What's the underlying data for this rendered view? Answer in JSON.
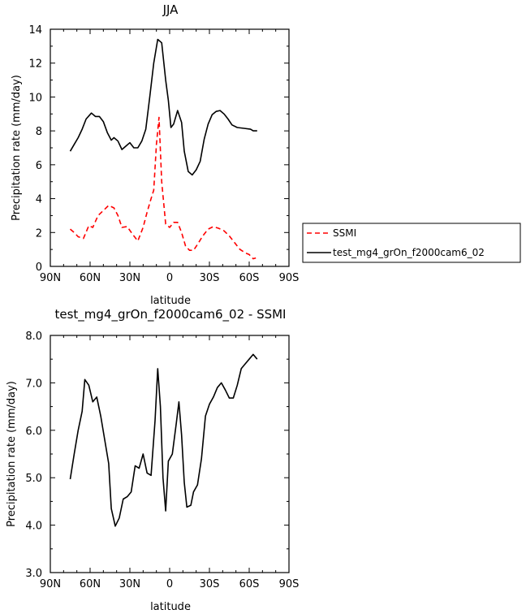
{
  "chart_data": [
    {
      "type": "line",
      "title": "JJA",
      "xlabel": "latitude",
      "ylabel": "Precipitation rate (mm/day)",
      "xlim": [
        -90,
        90
      ],
      "ylim": [
        0,
        14
      ],
      "x_ticks": [
        -90,
        -60,
        -30,
        0,
        30,
        60,
        90
      ],
      "x_tick_labels": [
        "90N",
        "60N",
        "30N",
        "0",
        "30S",
        "60S",
        "90S"
      ],
      "y_ticks": [
        0,
        2,
        4,
        6,
        8,
        10,
        12,
        14
      ],
      "y_tick_labels": [
        "0",
        "2",
        "4",
        "6",
        "8",
        "10",
        "12",
        "14"
      ],
      "grid": false,
      "legend_position": "right",
      "series": [
        {
          "name": "SSMI",
          "color": "#ff0000",
          "dash": "dashed",
          "points": [
            [
              -75,
              2.2
            ],
            [
              -72,
              2.0
            ],
            [
              -69,
              1.75
            ],
            [
              -65,
              1.65
            ],
            [
              -61,
              2.4
            ],
            [
              -58,
              2.3
            ],
            [
              -54,
              3.0
            ],
            [
              -50,
              3.3
            ],
            [
              -46,
              3.6
            ],
            [
              -42,
              3.45
            ],
            [
              -39,
              3.0
            ],
            [
              -36,
              2.3
            ],
            [
              -32,
              2.35
            ],
            [
              -28,
              1.9
            ],
            [
              -24,
              1.5
            ],
            [
              -20,
              2.3
            ],
            [
              -17,
              3.2
            ],
            [
              -14,
              4.0
            ],
            [
              -12,
              4.5
            ],
            [
              -10,
              7.2
            ],
            [
              -8,
              8.8
            ],
            [
              -6,
              5.0
            ],
            [
              -3,
              2.5
            ],
            [
              0,
              2.3
            ],
            [
              3,
              2.6
            ],
            [
              6,
              2.6
            ],
            [
              9,
              2.0
            ],
            [
              12,
              1.2
            ],
            [
              15,
              0.95
            ],
            [
              18,
              0.95
            ],
            [
              21,
              1.3
            ],
            [
              25,
              1.8
            ],
            [
              29,
              2.2
            ],
            [
              33,
              2.35
            ],
            [
              37,
              2.25
            ],
            [
              41,
              2.1
            ],
            [
              45,
              1.8
            ],
            [
              49,
              1.4
            ],
            [
              53,
              1.0
            ],
            [
              57,
              0.8
            ],
            [
              60,
              0.7
            ],
            [
              63,
              0.45
            ],
            [
              65,
              0.5
            ]
          ]
        },
        {
          "name": "test_mg4_grOn_f2000cam6_02",
          "color": "#000000",
          "dash": "solid",
          "points": [
            [
              -75,
              6.8
            ],
            [
              -72,
              7.2
            ],
            [
              -69,
              7.6
            ],
            [
              -66,
              8.1
            ],
            [
              -63,
              8.7
            ],
            [
              -59,
              9.05
            ],
            [
              -56,
              8.85
            ],
            [
              -53,
              8.85
            ],
            [
              -50,
              8.55
            ],
            [
              -47,
              7.9
            ],
            [
              -44,
              7.45
            ],
            [
              -42,
              7.6
            ],
            [
              -39,
              7.4
            ],
            [
              -36,
              6.9
            ],
            [
              -33,
              7.1
            ],
            [
              -30,
              7.3
            ],
            [
              -27,
              7.0
            ],
            [
              -24,
              7.0
            ],
            [
              -21,
              7.4
            ],
            [
              -18,
              8.1
            ],
            [
              -15,
              10.0
            ],
            [
              -12,
              12.0
            ],
            [
              -9,
              13.4
            ],
            [
              -6,
              13.2
            ],
            [
              -3,
              11.0
            ],
            [
              -1,
              9.8
            ],
            [
              1,
              8.2
            ],
            [
              3,
              8.4
            ],
            [
              6,
              9.2
            ],
            [
              9,
              8.5
            ],
            [
              11,
              6.8
            ],
            [
              14,
              5.6
            ],
            [
              17,
              5.4
            ],
            [
              20,
              5.7
            ],
            [
              23,
              6.2
            ],
            [
              26,
              7.5
            ],
            [
              29,
              8.4
            ],
            [
              32,
              8.95
            ],
            [
              35,
              9.15
            ],
            [
              38,
              9.2
            ],
            [
              41,
              9.0
            ],
            [
              44,
              8.7
            ],
            [
              47,
              8.35
            ],
            [
              51,
              8.2
            ],
            [
              56,
              8.15
            ],
            [
              61,
              8.1
            ],
            [
              63,
              8.0
            ],
            [
              66,
              8.0
            ]
          ]
        }
      ]
    },
    {
      "type": "line",
      "title": "test_mg4_grOn_f2000cam6_02 - SSMI",
      "xlabel": "latitude",
      "ylabel": "Precipitation rate (mm/day)",
      "xlim": [
        -90,
        90
      ],
      "ylim": [
        3.0,
        8.0
      ],
      "x_ticks": [
        -90,
        -60,
        -30,
        0,
        30,
        60,
        90
      ],
      "x_tick_labels": [
        "90N",
        "60N",
        "30N",
        "0",
        "30S",
        "60S",
        "90S"
      ],
      "y_ticks": [
        3.0,
        4.0,
        5.0,
        6.0,
        7.0,
        8.0
      ],
      "y_tick_labels": [
        "3.0",
        "4.0",
        "5.0",
        "6.0",
        "7.0",
        "8.0"
      ],
      "grid": false,
      "series": [
        {
          "color": "#000000",
          "dash": "solid",
          "points": [
            [
              -75,
              4.97
            ],
            [
              -72,
              5.5
            ],
            [
              -69,
              6.0
            ],
            [
              -66,
              6.4
            ],
            [
              -64,
              7.07
            ],
            [
              -61,
              6.95
            ],
            [
              -58,
              6.6
            ],
            [
              -55,
              6.7
            ],
            [
              -52,
              6.3
            ],
            [
              -49,
              5.8
            ],
            [
              -46,
              5.3
            ],
            [
              -44,
              4.35
            ],
            [
              -41,
              3.98
            ],
            [
              -38,
              4.15
            ],
            [
              -35,
              4.55
            ],
            [
              -32,
              4.6
            ],
            [
              -29,
              4.7
            ],
            [
              -26,
              5.25
            ],
            [
              -23,
              5.2
            ],
            [
              -20,
              5.5
            ],
            [
              -17,
              5.1
            ],
            [
              -14,
              5.05
            ],
            [
              -11,
              6.2
            ],
            [
              -9,
              7.3
            ],
            [
              -7,
              6.5
            ],
            [
              -5,
              5.0
            ],
            [
              -3,
              4.3
            ],
            [
              -1,
              5.35
            ],
            [
              2,
              5.5
            ],
            [
              5,
              6.15
            ],
            [
              7,
              6.6
            ],
            [
              9,
              5.9
            ],
            [
              11,
              4.9
            ],
            [
              13,
              4.38
            ],
            [
              16,
              4.42
            ],
            [
              18,
              4.7
            ],
            [
              21,
              4.85
            ],
            [
              24,
              5.4
            ],
            [
              27,
              6.3
            ],
            [
              30,
              6.55
            ],
            [
              33,
              6.7
            ],
            [
              36,
              6.9
            ],
            [
              39,
              7.0
            ],
            [
              42,
              6.85
            ],
            [
              45,
              6.68
            ],
            [
              48,
              6.68
            ],
            [
              51,
              6.95
            ],
            [
              54,
              7.3
            ],
            [
              57,
              7.4
            ],
            [
              60,
              7.5
            ],
            [
              63,
              7.6
            ],
            [
              66,
              7.5
            ]
          ]
        }
      ]
    }
  ]
}
